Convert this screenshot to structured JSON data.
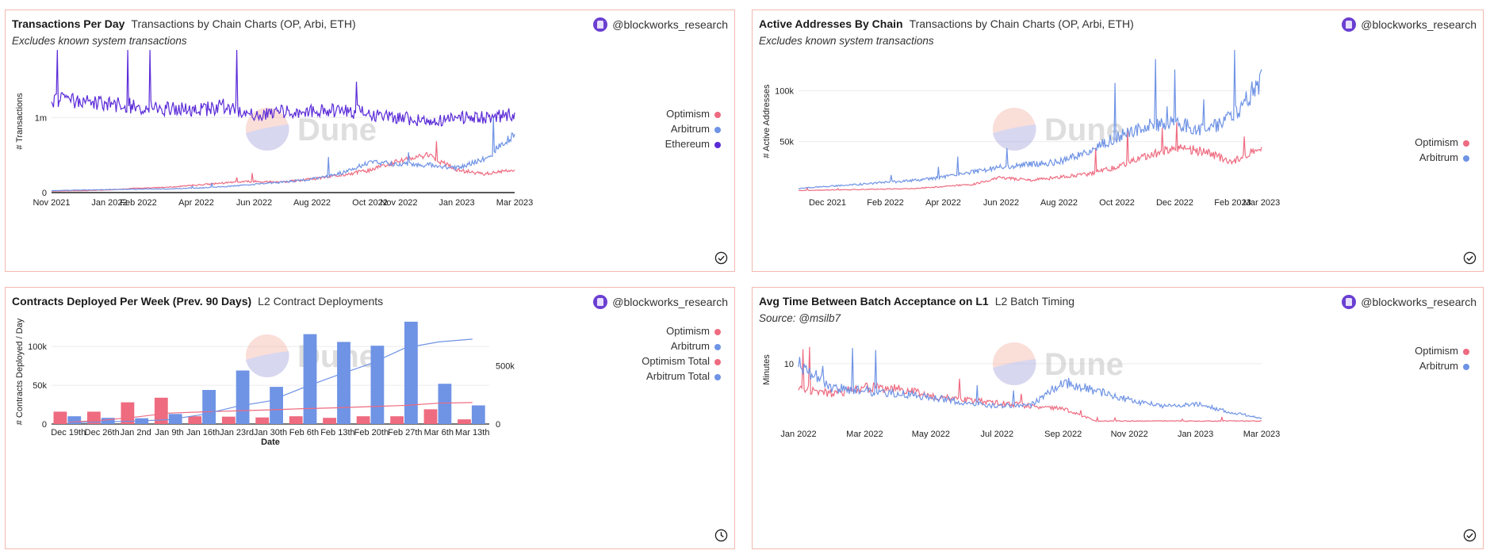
{
  "author": "@blockworks_research",
  "watermark": "Dune",
  "colors": {
    "optimism": "#ee6b80",
    "arbitrum": "#6f93e5",
    "ethereum": "#5b2bd8",
    "grid": "#ececec",
    "axis": "#222222"
  },
  "icons": {
    "avatar": "blockworks-logo-icon",
    "done": "check-circle-icon",
    "clock": "clock-icon"
  },
  "panels": [
    {
      "title": "Transactions Per Day",
      "subtitle": "Transactions by Chain Charts (OP, Arbi, ETH)",
      "note": "Excludes known system transactions",
      "corner_icon": "check-circle-icon",
      "legend": [
        {
          "label": "Optimism",
          "color": "#ee6b80"
        },
        {
          "label": "Arbitrum",
          "color": "#6f93e5"
        },
        {
          "label": "Ethereum",
          "color": "#5b2bd8"
        }
      ]
    },
    {
      "title": "Active Addresses By Chain",
      "subtitle": "Transactions by Chain Charts (OP, Arbi, ETH)",
      "note": "Excludes known system transactions",
      "corner_icon": "check-circle-icon",
      "legend": [
        {
          "label": "Optimism",
          "color": "#ee6b80"
        },
        {
          "label": "Arbitrum",
          "color": "#6f93e5"
        }
      ]
    },
    {
      "title": "Contracts Deployed Per Week (Prev. 90 Days)",
      "subtitle": "L2 Contract Deployments",
      "note": "",
      "corner_icon": "clock-icon",
      "legend": [
        {
          "label": "Optimism",
          "color": "#ee6b80"
        },
        {
          "label": "Arbitrum",
          "color": "#6f93e5"
        },
        {
          "label": "Optimism Total",
          "color": "#ee6b80"
        },
        {
          "label": "Arbitrum Total",
          "color": "#6f93e5"
        }
      ]
    },
    {
      "title": "Avg Time Between Batch Acceptance on L1",
      "subtitle": "L2 Batch Timing",
      "note": "Source: @msilb7",
      "corner_icon": "check-circle-icon",
      "legend": [
        {
          "label": "Optimism",
          "color": "#ee6b80"
        },
        {
          "label": "Arbitrum",
          "color": "#6f93e5"
        }
      ]
    }
  ],
  "chart_data": [
    {
      "type": "line",
      "ylabel": "# Transactions",
      "x_ticks": [
        "Nov 2021",
        "Jan 2022",
        "Feb 2022",
        "Apr 2022",
        "Jun 2022",
        "Aug 2022",
        "Oct 2022",
        "Nov 2022",
        "Jan 2023",
        "Mar 2023"
      ],
      "y_ticks": [
        "0",
        "1m"
      ],
      "ylim": [
        0,
        1900000
      ],
      "x": [
        "2021-11",
        "2021-12",
        "2022-01",
        "2022-02",
        "2022-03",
        "2022-04",
        "2022-05",
        "2022-06",
        "2022-07",
        "2022-08",
        "2022-09",
        "2022-10",
        "2022-11",
        "2022-12",
        "2023-01",
        "2023-02",
        "2023-03"
      ],
      "series": [
        {
          "name": "Optimism",
          "values": [
            20000,
            25000,
            35000,
            60000,
            70000,
            100000,
            130000,
            150000,
            140000,
            180000,
            230000,
            300000,
            420000,
            500000,
            300000,
            250000,
            300000
          ]
        },
        {
          "name": "Arbitrum",
          "values": [
            25000,
            35000,
            40000,
            45000,
            50000,
            60000,
            80000,
            110000,
            140000,
            180000,
            260000,
            400000,
            380000,
            370000,
            330000,
            450000,
            800000
          ]
        },
        {
          "name": "Ethereum",
          "values": [
            1250000,
            1200000,
            1180000,
            1150000,
            1120000,
            1100000,
            1150000,
            1050000,
            1080000,
            1080000,
            1100000,
            1050000,
            1000000,
            950000,
            1000000,
            1000000,
            1050000
          ]
        }
      ]
    },
    {
      "type": "line",
      "ylabel": "# Active Addresses",
      "x_ticks": [
        "Dec 2021",
        "Feb 2022",
        "Apr 2022",
        "Jun 2022",
        "Aug 2022",
        "Oct 2022",
        "Dec 2022",
        "Feb 2023",
        "Mar 2023"
      ],
      "y_ticks": [
        "50k",
        "100k"
      ],
      "ylim": [
        0,
        140000
      ],
      "x": [
        "2021-11",
        "2021-12",
        "2022-01",
        "2022-02",
        "2022-03",
        "2022-04",
        "2022-05",
        "2022-06",
        "2022-07",
        "2022-08",
        "2022-09",
        "2022-10",
        "2022-11",
        "2022-12",
        "2023-01",
        "2023-02",
        "2023-03"
      ],
      "series": [
        {
          "name": "Optimism",
          "values": [
            2000,
            2500,
            3000,
            3500,
            4000,
            6000,
            8000,
            15000,
            12000,
            15000,
            18000,
            25000,
            35000,
            45000,
            40000,
            30000,
            45000
          ]
        },
        {
          "name": "Arbitrum",
          "values": [
            4000,
            6000,
            8000,
            10000,
            12000,
            15000,
            20000,
            25000,
            28000,
            30000,
            40000,
            55000,
            65000,
            70000,
            60000,
            75000,
            110000
          ]
        }
      ]
    },
    {
      "type": "bar",
      "xlabel": "Date",
      "ylabel": "# Contracts Deployed / Day",
      "categories": [
        "Dec 19th",
        "Dec 26th",
        "Jan 2nd",
        "Jan 9th",
        "Jan 16th",
        "Jan 23rd",
        "Jan 30th",
        "Feb 6th",
        "Feb 13th",
        "Feb 20th",
        "Feb 27th",
        "Mar 6th",
        "Mar 13th"
      ],
      "y_ticks": [
        "0",
        "50k",
        "100k"
      ],
      "y2_ticks": [
        "0",
        "500k"
      ],
      "ylim": [
        0,
        135000
      ],
      "y2lim": [
        0,
        900000
      ],
      "series": [
        {
          "name": "Optimism",
          "values": [
            16000,
            16000,
            28000,
            34000,
            10000,
            9500,
            8500,
            10000,
            8000,
            10000,
            10000,
            19000,
            6000
          ]
        },
        {
          "name": "Arbitrum",
          "values": [
            10000,
            8000,
            7500,
            13000,
            44000,
            69000,
            48000,
            116000,
            106000,
            101000,
            132000,
            52000,
            24000
          ]
        },
        {
          "name": "Optimism Total",
          "values": [
            16000,
            32000,
            60000,
            94000,
            104000,
            113000,
            122000,
            132000,
            140000,
            150000,
            160000,
            179000,
            185000
          ]
        },
        {
          "name": "Arbitrum Total",
          "values": [
            10000,
            18000,
            25500,
            38500,
            82500,
            151500,
            199500,
            315500,
            421500,
            522500,
            654500,
            706500,
            730500
          ]
        }
      ]
    },
    {
      "type": "line",
      "ylabel": "Minutes",
      "x_ticks": [
        "Jan 2022",
        "Mar 2022",
        "May 2022",
        "Jul 2022",
        "Sep 2022",
        "Nov 2022",
        "Jan 2023",
        "Mar 2023"
      ],
      "y_ticks": [
        "10"
      ],
      "ylim": [
        0,
        18
      ],
      "x": [
        "2022-01",
        "2022-02",
        "2022-03",
        "2022-04",
        "2022-05",
        "2022-06",
        "2022-07",
        "2022-08",
        "2022-09",
        "2022-10",
        "2022-11",
        "2022-12",
        "2023-01",
        "2023-02",
        "2023-03"
      ],
      "series": [
        {
          "name": "Optimism",
          "values": [
            6,
            5,
            6,
            6,
            4.5,
            4,
            3.5,
            3,
            2.5,
            0.5,
            0.5,
            0.5,
            0.5,
            0.5,
            0.5
          ]
        },
        {
          "name": "Arbitrum",
          "values": [
            10,
            6,
            5.5,
            5,
            4.5,
            3.5,
            3,
            3,
            7,
            5.5,
            4,
            3,
            3.5,
            2,
            1
          ]
        }
      ]
    }
  ]
}
